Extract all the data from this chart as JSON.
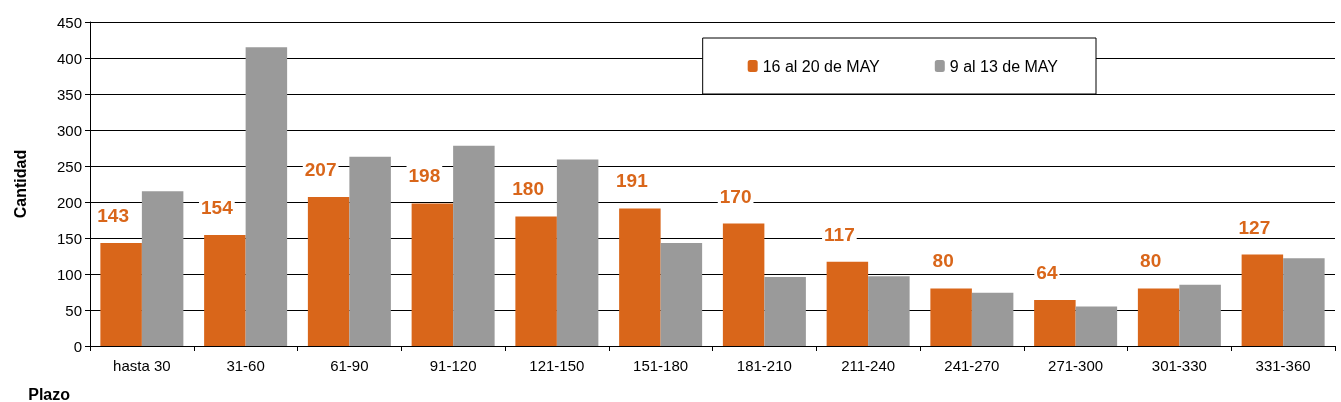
{
  "chart_data": {
    "type": "bar",
    "xlabel": "Plazo",
    "ylabel": "Cantidad",
    "categories": [
      "hasta 30",
      "31-60",
      "61-90",
      "91-120",
      "121-150",
      "151-180",
      "181-210",
      "211-240",
      "241-270",
      "271-300",
      "301-330",
      "331-360"
    ],
    "series": [
      {
        "name": "16 al 20 de MAY",
        "color": "#d9661a",
        "values": [
          143,
          154,
          207,
          198,
          180,
          191,
          170,
          117,
          80,
          64,
          80,
          127
        ],
        "value_labels": [
          "143",
          "154",
          "207",
          "198",
          "180",
          "191",
          "170",
          "117",
          "80",
          "64",
          "80",
          "127"
        ]
      },
      {
        "name": "9 al 13 de MAY",
        "color": "#9a9a9a",
        "values": [
          215,
          415,
          263,
          278,
          259,
          143,
          96,
          97,
          74,
          55,
          85,
          122
        ]
      }
    ],
    "ylim": [
      0,
      450
    ],
    "yticks": [
      0,
      50,
      100,
      150,
      200,
      250,
      300,
      350,
      400,
      450
    ],
    "grid": true,
    "legend": "top right"
  }
}
